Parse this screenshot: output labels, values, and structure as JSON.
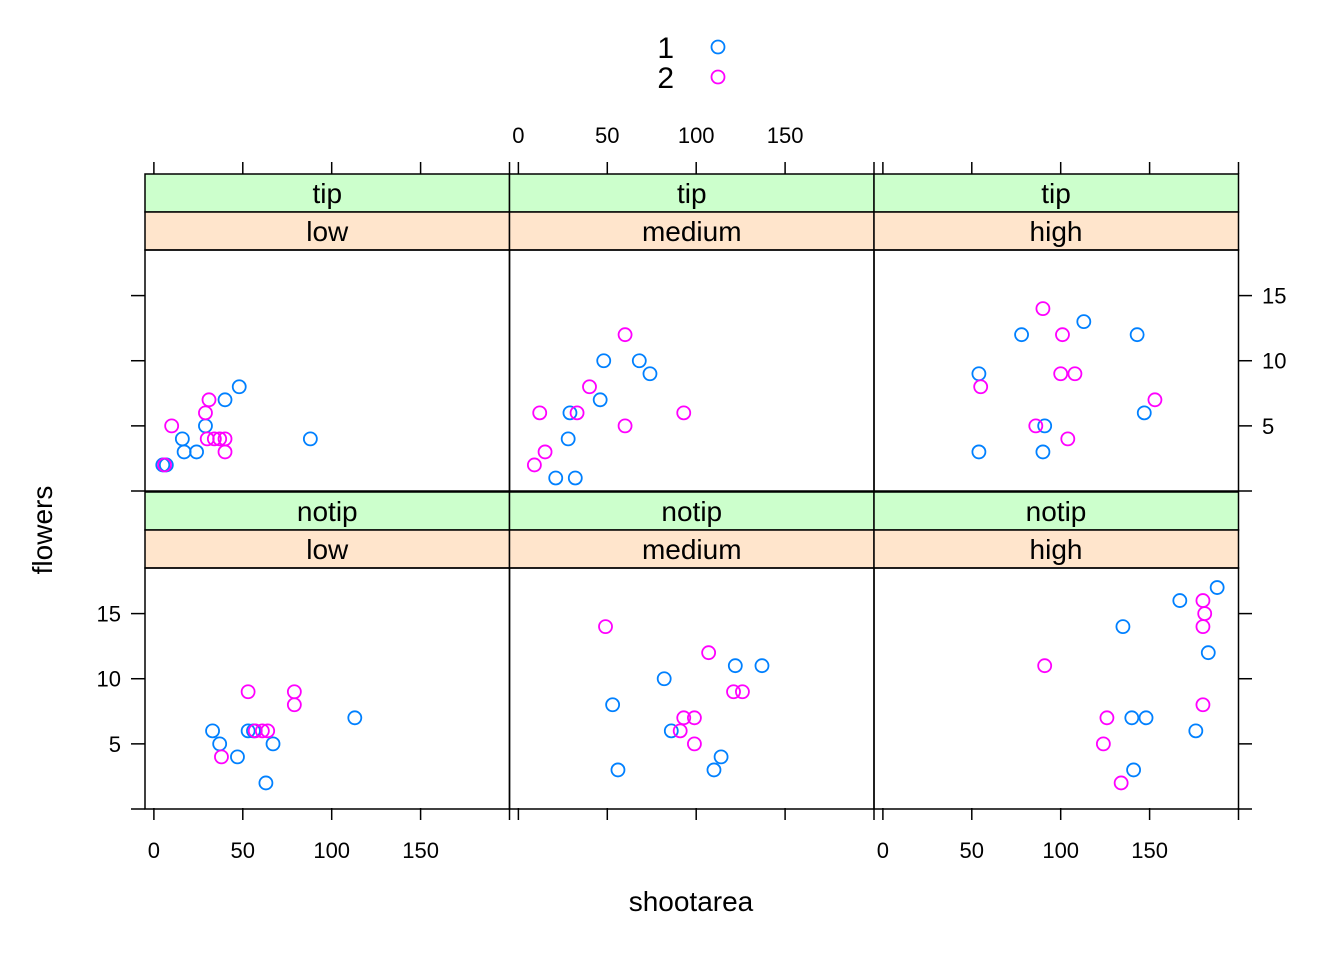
{
  "chart_data": {
    "type": "scatter",
    "xlabel": "shootarea",
    "ylabel": "flowers",
    "xlim": [
      -5,
      200
    ],
    "ylim": [
      0,
      18.5
    ],
    "x_ticks": [
      0,
      50,
      100,
      150
    ],
    "y_ticks": [
      5,
      10,
      15
    ],
    "x_tick_labels": [
      "0",
      "50",
      "100",
      "150"
    ],
    "y_tick_labels": [
      "5",
      "10",
      "15"
    ],
    "colors": {
      "1": "#0080ff",
      "2": "#ff00ff",
      "strip_outer": "#ccffcc",
      "strip_inner": "#ffe5cc"
    },
    "legend": {
      "placement": "top",
      "entries": [
        "1",
        "2"
      ]
    },
    "panels": [
      {
        "strip_outer": "tip",
        "strip_inner": "low",
        "series": [
          {
            "name": "1",
            "points": [
              [
                5,
                2
              ],
              [
                7,
                2
              ],
              [
                17,
                3
              ],
              [
                16,
                4
              ],
              [
                24,
                3
              ],
              [
                29,
                5
              ],
              [
                40,
                7
              ],
              [
                48,
                8
              ],
              [
                88,
                4
              ]
            ]
          },
          {
            "name": "2",
            "points": [
              [
                6,
                2
              ],
              [
                10,
                5
              ],
              [
                29,
                6
              ],
              [
                31,
                7
              ],
              [
                30,
                4
              ],
              [
                34,
                4
              ],
              [
                37,
                4
              ],
              [
                40,
                4
              ],
              [
                40,
                3
              ]
            ]
          }
        ]
      },
      {
        "strip_outer": "tip",
        "strip_inner": "medium",
        "series": [
          {
            "name": "1",
            "points": [
              [
                21,
                1
              ],
              [
                32,
                1
              ],
              [
                28,
                4
              ],
              [
                29,
                6
              ],
              [
                46,
                7
              ],
              [
                48,
                10
              ],
              [
                68,
                10
              ],
              [
                74,
                9
              ]
            ]
          },
          {
            "name": "2",
            "points": [
              [
                9,
                2
              ],
              [
                15,
                3
              ],
              [
                12,
                6
              ],
              [
                33,
                6
              ],
              [
                40,
                8
              ],
              [
                60,
                12
              ],
              [
                60,
                5
              ],
              [
                93,
                6
              ]
            ]
          }
        ]
      },
      {
        "strip_outer": "tip",
        "strip_inner": "high",
        "series": [
          {
            "name": "1",
            "points": [
              [
                54,
                9
              ],
              [
                54,
                3
              ],
              [
                78,
                12
              ],
              [
                90,
                3
              ],
              [
                91,
                5
              ],
              [
                113,
                13
              ],
              [
                143,
                12
              ],
              [
                147,
                6
              ]
            ]
          },
          {
            "name": "2",
            "points": [
              [
                55,
                8
              ],
              [
                86,
                5
              ],
              [
                90,
                14
              ],
              [
                100,
                9
              ],
              [
                101,
                12
              ],
              [
                104,
                4
              ],
              [
                108,
                9
              ],
              [
                153,
                7
              ]
            ]
          }
        ]
      },
      {
        "strip_outer": "notip",
        "strip_inner": "low",
        "series": [
          {
            "name": "1",
            "points": [
              [
                33,
                6
              ],
              [
                37,
                5
              ],
              [
                47,
                4
              ],
              [
                53,
                6
              ],
              [
                56,
                6
              ],
              [
                63,
                2
              ],
              [
                67,
                5
              ],
              [
                113,
                7
              ]
            ]
          },
          {
            "name": "2",
            "points": [
              [
                38,
                4
              ],
              [
                53,
                9
              ],
              [
                57,
                6
              ],
              [
                61,
                6
              ],
              [
                64,
                6
              ],
              [
                79,
                9
              ],
              [
                79,
                8
              ]
            ]
          }
        ]
      },
      {
        "strip_outer": "notip",
        "strip_inner": "medium",
        "series": [
          {
            "name": "1",
            "points": [
              [
                53,
                8
              ],
              [
                56,
                3
              ],
              [
                82,
                10
              ],
              [
                86,
                6
              ],
              [
                110,
                3
              ],
              [
                114,
                4
              ],
              [
                122,
                11
              ],
              [
                137,
                11
              ]
            ]
          },
          {
            "name": "2",
            "points": [
              [
                49,
                14
              ],
              [
                91,
                6
              ],
              [
                93,
                7
              ],
              [
                99,
                7
              ],
              [
                99,
                5
              ],
              [
                107,
                12
              ],
              [
                121,
                9
              ],
              [
                126,
                9
              ]
            ]
          }
        ]
      },
      {
        "strip_outer": "notip",
        "strip_inner": "high",
        "series": [
          {
            "name": "1",
            "points": [
              [
                135,
                14
              ],
              [
                140,
                7
              ],
              [
                141,
                3
              ],
              [
                148,
                7
              ],
              [
                167,
                16
              ],
              [
                176,
                6
              ],
              [
                183,
                12
              ],
              [
                188,
                17
              ]
            ]
          },
          {
            "name": "2",
            "points": [
              [
                91,
                11
              ],
              [
                124,
                5
              ],
              [
                126,
                7
              ],
              [
                134,
                2
              ],
              [
                180,
                16
              ],
              [
                181,
                15
              ],
              [
                180,
                14
              ],
              [
                180,
                8
              ]
            ]
          }
        ]
      }
    ]
  }
}
